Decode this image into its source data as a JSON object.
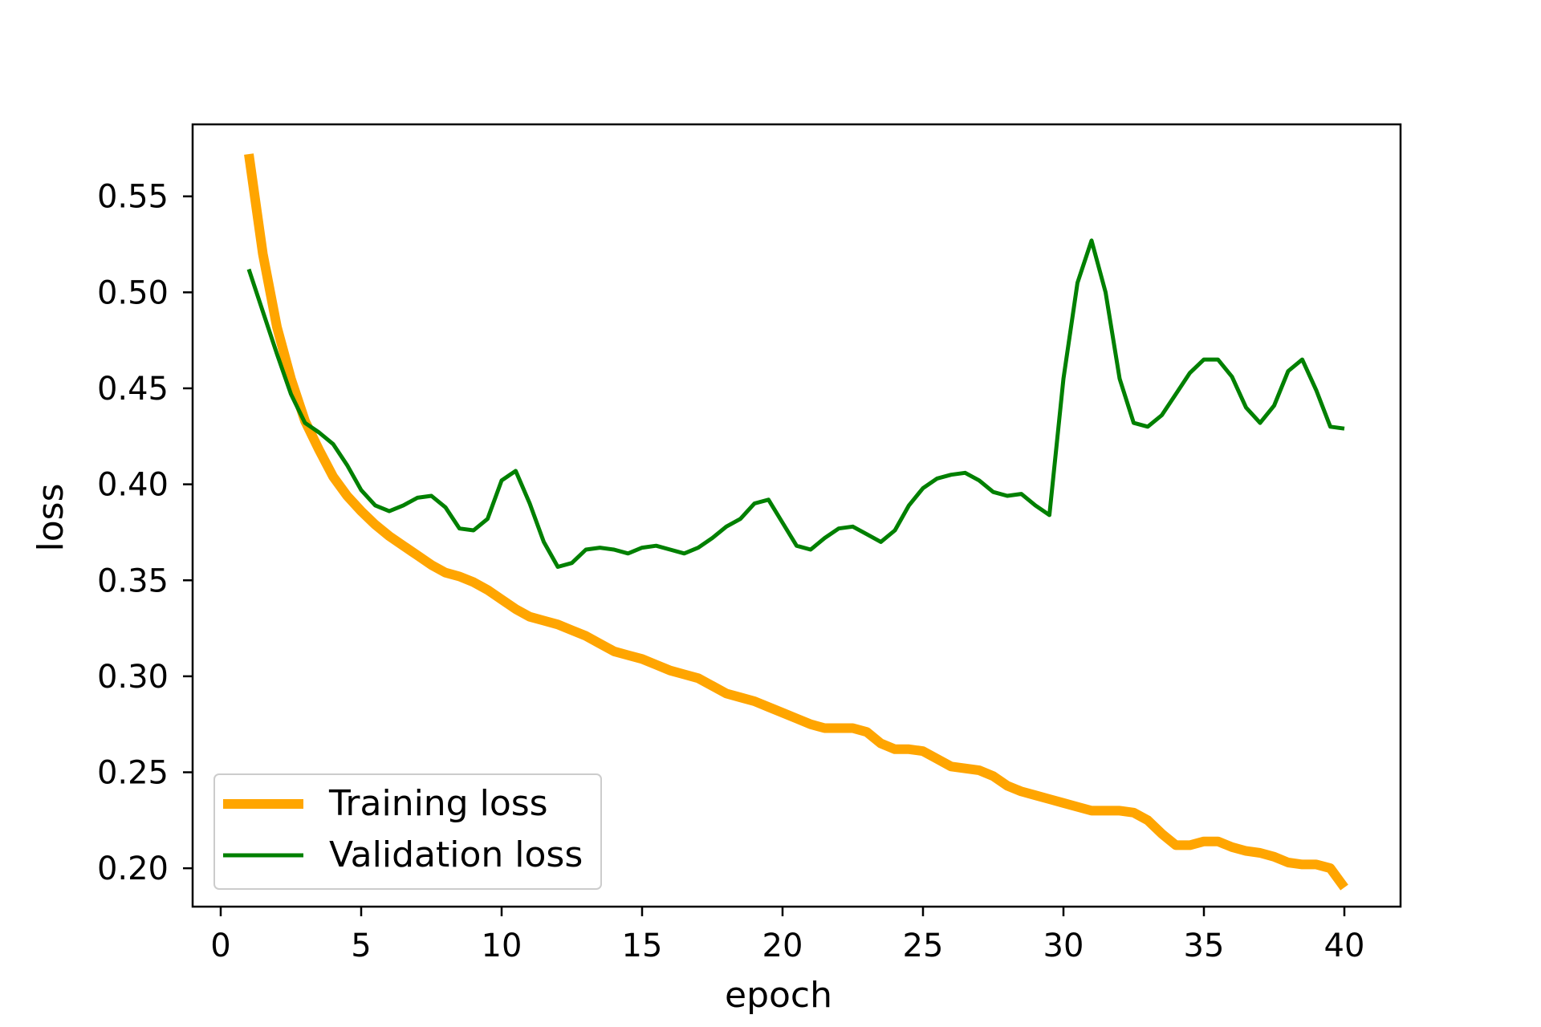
{
  "chart_data": {
    "type": "line",
    "title": "",
    "xlabel": "epoch",
    "ylabel": "loss",
    "xlim": [
      -1,
      42
    ],
    "ylim": [
      0.18,
      0.5875
    ],
    "xticks": [
      0,
      5,
      10,
      15,
      20,
      25,
      30,
      35,
      40
    ],
    "xtick_labels": [
      "0",
      "5",
      "10",
      "15",
      "20",
      "25",
      "30",
      "35",
      "40"
    ],
    "yticks": [
      0.2,
      0.25,
      0.3,
      0.35,
      0.4,
      0.45,
      0.5,
      0.55
    ],
    "ytick_labels": [
      "0.20",
      "0.25",
      "0.30",
      "0.35",
      "0.40",
      "0.45",
      "0.50",
      "0.55"
    ],
    "grid": false,
    "legend_position": "lower-left",
    "series": [
      {
        "name": "Training loss",
        "color": "#ffa500",
        "x": [
          1,
          1.5,
          2,
          2.5,
          3,
          3.5,
          4,
          4.5,
          5,
          5.5,
          6,
          6.5,
          7,
          7.5,
          8,
          8.5,
          9,
          9.5,
          10,
          10.5,
          11,
          11.5,
          12,
          12.5,
          13,
          13.5,
          14,
          14.5,
          15,
          15.5,
          16,
          16.5,
          17,
          17.5,
          18,
          18.5,
          19,
          19.5,
          20,
          20.5,
          21,
          21.5,
          22,
          22.5,
          23,
          23.5,
          24,
          24.5,
          25,
          25.5,
          26,
          26.5,
          27,
          27.5,
          28,
          28.5,
          29,
          29.5,
          30,
          30.5,
          31,
          31.5,
          32,
          32.5,
          33,
          33.5,
          34,
          34.5,
          35,
          35.5,
          36,
          36.5,
          37,
          37.5,
          38,
          38.5,
          39,
          39.5,
          40
        ],
        "y": [
          0.572,
          0.52,
          0.482,
          0.455,
          0.433,
          0.418,
          0.404,
          0.394,
          0.386,
          0.379,
          0.373,
          0.368,
          0.363,
          0.358,
          0.354,
          0.352,
          0.349,
          0.345,
          0.34,
          0.335,
          0.331,
          0.329,
          0.327,
          0.324,
          0.321,
          0.317,
          0.313,
          0.311,
          0.309,
          0.306,
          0.303,
          0.301,
          0.299,
          0.295,
          0.291,
          0.289,
          0.287,
          0.284,
          0.281,
          0.278,
          0.275,
          0.273,
          0.273,
          0.273,
          0.271,
          0.265,
          0.262,
          0.262,
          0.261,
          0.257,
          0.253,
          0.252,
          0.251,
          0.248,
          0.243,
          0.24,
          0.238,
          0.236,
          0.234,
          0.232,
          0.23,
          0.23,
          0.23,
          0.229,
          0.225,
          0.218,
          0.212,
          0.212,
          0.214,
          0.214,
          0.211,
          0.209,
          0.208,
          0.206,
          0.203,
          0.202,
          0.202,
          0.2,
          0.19
        ]
      },
      {
        "name": "Validation loss",
        "color": "#008000",
        "x": [
          1,
          1.5,
          2,
          2.5,
          3,
          3.5,
          4,
          4.5,
          5,
          5.5,
          6,
          6.5,
          7,
          7.5,
          8,
          8.5,
          9,
          9.5,
          10,
          10.5,
          11,
          11.5,
          12,
          12.5,
          13,
          13.5,
          14,
          14.5,
          15,
          15.5,
          16,
          16.5,
          17,
          17.5,
          18,
          18.5,
          19,
          19.5,
          20,
          20.5,
          21,
          21.5,
          22,
          22.5,
          23,
          23.5,
          24,
          24.5,
          25,
          25.5,
          26,
          26.5,
          27,
          27.5,
          28,
          28.5,
          29,
          29.5,
          30,
          30.5,
          31,
          31.5,
          32,
          32.5,
          33,
          33.5,
          34,
          34.5,
          35,
          35.5,
          36,
          36.5,
          37,
          37.5,
          38,
          38.5,
          39,
          39.5,
          40
        ],
        "y": [
          0.512,
          0.49,
          0.468,
          0.447,
          0.432,
          0.427,
          0.421,
          0.41,
          0.397,
          0.389,
          0.386,
          0.389,
          0.393,
          0.394,
          0.388,
          0.377,
          0.376,
          0.382,
          0.402,
          0.407,
          0.39,
          0.37,
          0.357,
          0.359,
          0.366,
          0.367,
          0.366,
          0.364,
          0.367,
          0.368,
          0.366,
          0.364,
          0.367,
          0.372,
          0.378,
          0.382,
          0.39,
          0.392,
          0.38,
          0.368,
          0.366,
          0.372,
          0.377,
          0.378,
          0.374,
          0.37,
          0.376,
          0.389,
          0.398,
          0.403,
          0.405,
          0.406,
          0.402,
          0.396,
          0.394,
          0.395,
          0.389,
          0.384,
          0.455,
          0.505,
          0.527,
          0.5,
          0.455,
          0.432,
          0.43,
          0.436,
          0.447,
          0.458,
          0.465,
          0.465,
          0.456,
          0.44,
          0.432,
          0.441,
          0.459,
          0.465,
          0.449,
          0.43,
          0.429
        ]
      }
    ]
  }
}
